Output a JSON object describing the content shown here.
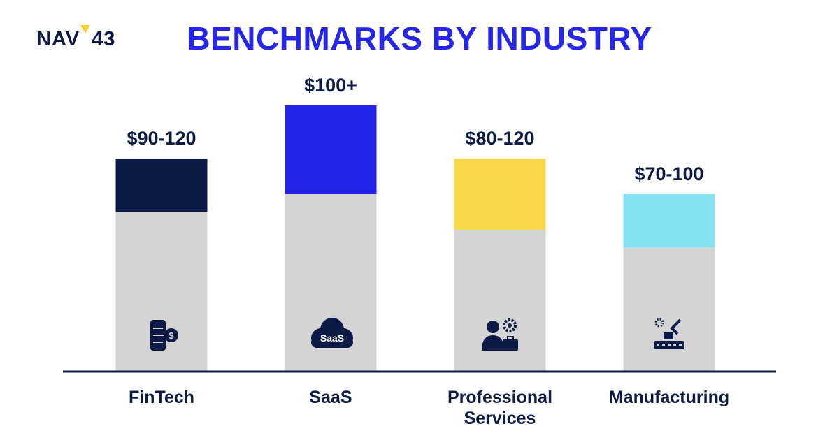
{
  "logo": {
    "left": "NAV",
    "right": "43",
    "mark_color": "#f5d23a"
  },
  "title": "BENCHMARKS BY INDUSTRY",
  "colors": {
    "title": "#2626e6",
    "axis": "#0c1b45",
    "base": "#d4d4d4",
    "label": "#0c1b45"
  },
  "chart_data": {
    "type": "bar",
    "title": "BENCHMARKS BY INDUSTRY",
    "categories": [
      "FinTech",
      "SaaS",
      "Professional Services",
      "Manufacturing"
    ],
    "category_lines": [
      [
        "FinTech"
      ],
      [
        "SaaS"
      ],
      [
        "Professional",
        "Services"
      ],
      [
        "Manufacturing"
      ]
    ],
    "value_labels": [
      "$90-120",
      "$100+",
      "$80-120",
      "$70-100"
    ],
    "ranges": [
      [
        90,
        120
      ],
      [
        100,
        150
      ],
      [
        80,
        120
      ],
      [
        70,
        100
      ]
    ],
    "bar_colors": [
      "#0b1b48",
      "#2424e6",
      "#f9d84a",
      "#84e2f5"
    ],
    "icons": [
      "fintech-phone-icon",
      "saas-cloud-icon",
      "professional-person-icon",
      "manufacturing-robot-icon"
    ],
    "icon_text": {
      "saas": "SaaS"
    },
    "ylim": [
      0,
      150
    ],
    "xlabel": "",
    "ylabel": "",
    "grid": false,
    "legend": "none"
  }
}
